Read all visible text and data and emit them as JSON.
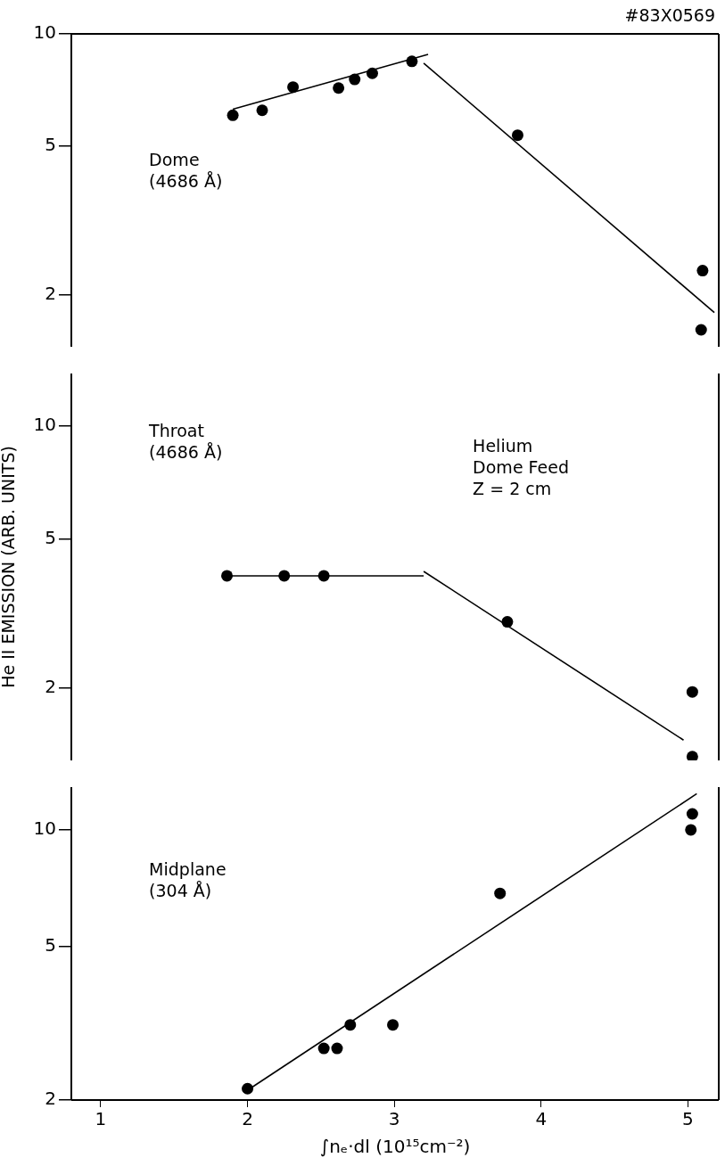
{
  "chart_data": [
    {
      "type": "scatter",
      "log": "y",
      "grid": false,
      "tick_labels": "y",
      "xlim": [
        0.8,
        5.21
      ],
      "xticks": [
        1,
        2,
        3,
        4,
        5
      ],
      "ylim": [
        1.45,
        10
      ],
      "yticks": [
        2,
        5,
        10
      ],
      "annotations": [
        "#83X0569",
        "Dome\n(4686 Å)"
      ],
      "series": [
        {
          "type": "scatter",
          "marker": "circle",
          "color": "#000000",
          "x": [
            1.9,
            2.1,
            2.31,
            2.62,
            2.73,
            2.85,
            3.12,
            3.84,
            5.1,
            5.09
          ],
          "values": [
            6.05,
            6.24,
            7.2,
            7.16,
            7.55,
            7.84,
            8.44,
            5.35,
            2.32,
            1.61
          ]
        },
        {
          "type": "line",
          "marker": "none",
          "color": "#000000",
          "x": [
            1.9,
            3.23
          ],
          "values": [
            6.28,
            8.81
          ]
        },
        {
          "type": "line",
          "marker": "none",
          "color": "#000000",
          "x": [
            3.2,
            5.18
          ],
          "values": [
            8.35,
            1.79
          ]
        }
      ]
    },
    {
      "type": "scatter",
      "log": "y",
      "grid": false,
      "tick_labels": "y",
      "xlim": [
        0.8,
        5.21
      ],
      "xticks": [
        1,
        2,
        3,
        4,
        5
      ],
      "ylim": [
        1.28,
        13.8
      ],
      "yticks": [
        2,
        5,
        10
      ],
      "ylabel": "He II EMISSION (ARB. UNITS)",
      "annotations": [
        "Throat\n(4686 Å)",
        "Helium\nDome Feed\nZ = 2 cm"
      ],
      "series": [
        {
          "type": "scatter",
          "marker": "circle",
          "color": "#000000",
          "x": [
            1.86,
            2.25,
            2.52,
            3.77,
            5.03,
            5.03
          ],
          "values": [
            3.98,
            3.98,
            3.98,
            3.0,
            1.95,
            1.31
          ]
        },
        {
          "type": "line",
          "marker": "none",
          "color": "#000000",
          "x": [
            1.86,
            3.2
          ],
          "values": [
            3.98,
            3.98
          ]
        },
        {
          "type": "line",
          "marker": "none",
          "color": "#000000",
          "x": [
            3.2,
            4.97
          ],
          "values": [
            4.09,
            1.45
          ]
        }
      ]
    },
    {
      "type": "scatter",
      "log": "y",
      "grid": false,
      "xlim": [
        0.8,
        5.21
      ],
      "xticks": [
        1,
        2,
        3,
        4,
        5
      ],
      "ylim": [
        2,
        12.9
      ],
      "yticks": [
        2,
        5,
        10
      ],
      "xlabel": "∫nₑ·dl (10¹⁵cm⁻²)",
      "annotations": [
        "Midplane\n(304 Å)"
      ],
      "series": [
        {
          "type": "scatter",
          "marker": "circle",
          "color": "#000000",
          "x": [
            2.0,
            2.52,
            2.61,
            2.7,
            2.99,
            3.72,
            5.02,
            5.03
          ],
          "values": [
            2.14,
            2.72,
            2.72,
            3.13,
            3.13,
            6.85,
            10.0,
            11.0
          ]
        },
        {
          "type": "line",
          "marker": "none",
          "color": "#000000",
          "x": [
            2.0,
            5.06
          ],
          "values": [
            2.12,
            12.4
          ]
        }
      ]
    }
  ]
}
